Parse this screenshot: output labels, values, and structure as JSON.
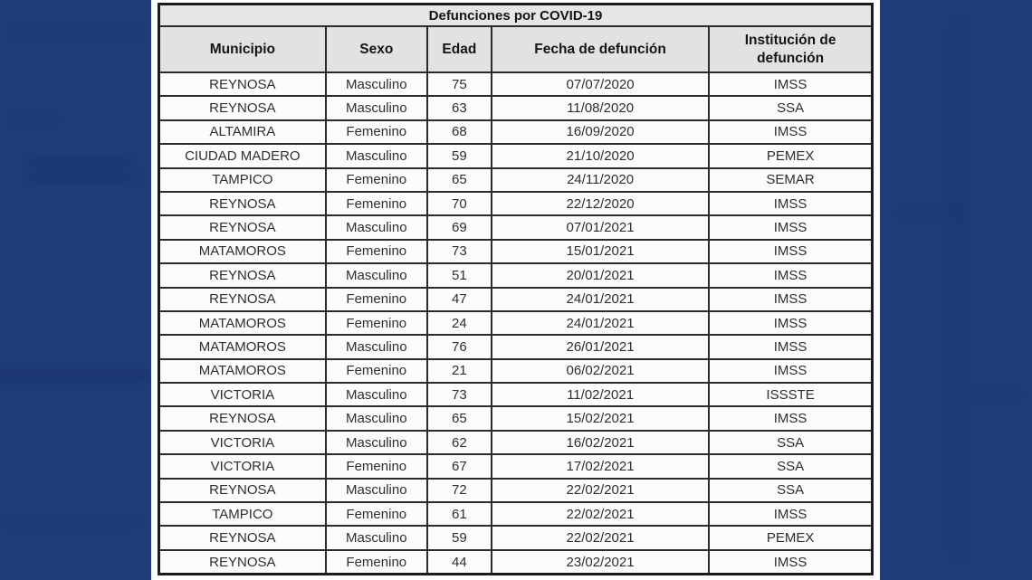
{
  "chart_data": {
    "type": "table",
    "title": "Defunciones por COVID-19",
    "columns": [
      "Municipio",
      "Sexo",
      "Edad",
      "Fecha de defunción",
      "Institución de defunción"
    ],
    "column_keys": [
      "municipio",
      "sexo",
      "edad",
      "fecha",
      "institucion"
    ],
    "rows": [
      [
        "REYNOSA",
        "Masculino",
        "75",
        "07/07/2020",
        "IMSS"
      ],
      [
        "REYNOSA",
        "Masculino",
        "63",
        "11/08/2020",
        "SSA"
      ],
      [
        "ALTAMIRA",
        "Femenino",
        "68",
        "16/09/2020",
        "IMSS"
      ],
      [
        "CIUDAD MADERO",
        "Masculino",
        "59",
        "21/10/2020",
        "PEMEX"
      ],
      [
        "TAMPICO",
        "Femenino",
        "65",
        "24/11/2020",
        "SEMAR"
      ],
      [
        "REYNOSA",
        "Femenino",
        "70",
        "22/12/2020",
        "IMSS"
      ],
      [
        "REYNOSA",
        "Masculino",
        "69",
        "07/01/2021",
        "IMSS"
      ],
      [
        "MATAMOROS",
        "Femenino",
        "73",
        "15/01/2021",
        "IMSS"
      ],
      [
        "REYNOSA",
        "Masculino",
        "51",
        "20/01/2021",
        "IMSS"
      ],
      [
        "REYNOSA",
        "Femenino",
        "47",
        "24/01/2021",
        "IMSS"
      ],
      [
        "MATAMOROS",
        "Femenino",
        "24",
        "24/01/2021",
        "IMSS"
      ],
      [
        "MATAMOROS",
        "Masculino",
        "76",
        "26/01/2021",
        "IMSS"
      ],
      [
        "MATAMOROS",
        "Femenino",
        "21",
        "06/02/2021",
        "IMSS"
      ],
      [
        "VICTORIA",
        "Masculino",
        "73",
        "11/02/2021",
        "ISSSTE"
      ],
      [
        "REYNOSA",
        "Masculino",
        "65",
        "15/02/2021",
        "IMSS"
      ],
      [
        "VICTORIA",
        "Masculino",
        "62",
        "16/02/2021",
        "SSA"
      ],
      [
        "VICTORIA",
        "Femenino",
        "67",
        "17/02/2021",
        "SSA"
      ],
      [
        "REYNOSA",
        "Masculino",
        "72",
        "22/02/2021",
        "SSA"
      ],
      [
        "TAMPICO",
        "Femenino",
        "61",
        "22/02/2021",
        "IMSS"
      ],
      [
        "REYNOSA",
        "Masculino",
        "59",
        "22/02/2021",
        "PEMEX"
      ],
      [
        "REYNOSA",
        "Femenino",
        "44",
        "23/02/2021",
        "IMSS"
      ]
    ]
  },
  "colors": {
    "background_blue": "#203d7b",
    "panel_white": "#ffffff",
    "header_gray": "#e2e2e2",
    "title_gray": "#e6e6e6",
    "border_dark": "#2b2b2b",
    "cell_text": "#2e2e2e"
  }
}
